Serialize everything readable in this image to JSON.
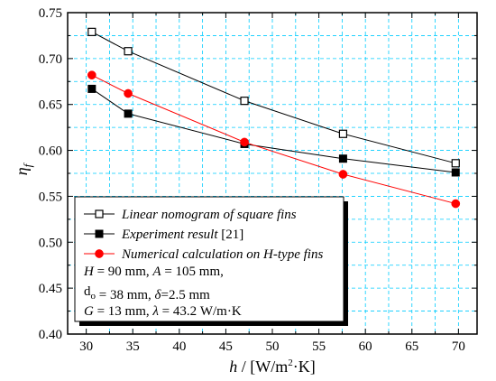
{
  "chart_data": {
    "type": "line",
    "xlabel": {
      "var": "h",
      "sep": " / [W/m",
      "sup": "2",
      "tail": "·K]"
    },
    "ylabel": {
      "var": "η",
      "sub": "f"
    },
    "xlim": [
      28,
      72
    ],
    "ylim": [
      0.4,
      0.75
    ],
    "xticks": [
      30,
      35,
      40,
      45,
      50,
      55,
      60,
      65,
      70
    ],
    "yticks": [
      0.4,
      0.45,
      0.5,
      0.55,
      0.6,
      0.65,
      0.7,
      0.75
    ],
    "grid": true,
    "legend_position": "bottom-left",
    "series": [
      {
        "name": "Linear nomogram of square fins",
        "marker": "open-square",
        "color": "#000000",
        "x": [
          30.6,
          34.5,
          47.0,
          57.6,
          69.7
        ],
        "values": [
          0.729,
          0.708,
          0.654,
          0.618,
          0.586
        ]
      },
      {
        "name": "Experiment result",
        "name_suffix": " [21]",
        "marker": "filled-square",
        "color": "#000000",
        "x": [
          30.6,
          34.5,
          47.0,
          57.6,
          69.7
        ],
        "values": [
          0.667,
          0.64,
          0.607,
          0.591,
          0.576
        ]
      },
      {
        "name": "Numerical calculation on H-type fins",
        "marker": "filled-circle",
        "color": "#ff0000",
        "x": [
          30.6,
          34.5,
          47.0,
          57.6,
          69.7
        ],
        "values": [
          0.682,
          0.662,
          0.609,
          0.574,
          0.542
        ]
      }
    ],
    "annotation_lines": [
      [
        {
          "t": "H",
          "i": true
        },
        {
          "t": " = 90 mm, "
        },
        {
          "t": "A",
          "i": true
        },
        {
          "t": " = 105 mm,"
        }
      ],
      [
        {
          "t": "d"
        },
        {
          "t": "o",
          "sub": true
        },
        {
          "t": " = 38 mm, "
        },
        {
          "t": "δ",
          "i": true
        },
        {
          "t": "=2.5 mm"
        }
      ],
      [
        {
          "t": "G",
          "i": true
        },
        {
          "t": " = 13 mm, "
        },
        {
          "t": "λ",
          "i": true
        },
        {
          "t": " = 43.2 W/m·K"
        }
      ]
    ]
  },
  "colors": {
    "grid": "#00ccff",
    "axis": "#000000",
    "series_black": "#000000",
    "series_red": "#ff0000"
  }
}
